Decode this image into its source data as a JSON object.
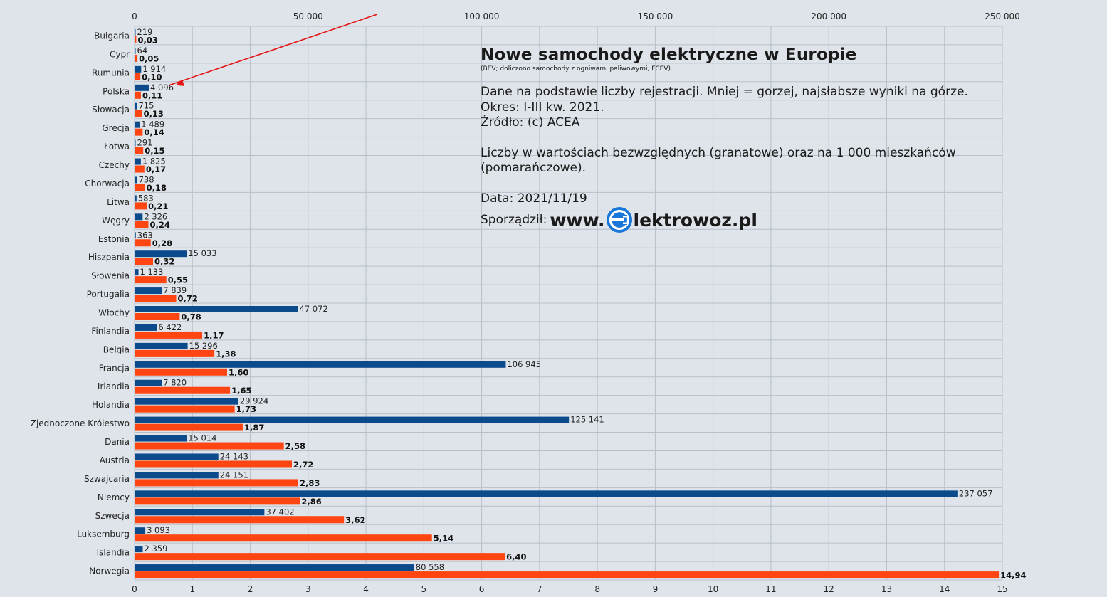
{
  "colors": {
    "background": "#dfe4ea",
    "absolute": "#0b4a8b",
    "per_capita": "#fe4512",
    "grid": "#b8bfc9",
    "arrow": "#e31515",
    "logo_icon": "#1877d8"
  },
  "info": {
    "title": "Nowe samochody elektryczne w Europie",
    "subtitle": "(BEV; doliczono samochody z ogniwami paliwowymi, FCEV)",
    "line1": "Dane na podstawie liczby rejestracji. Mniej = gorzej, najsłabsze wyniki na górze.",
    "line2": "Okres: I-III kw. 2021.",
    "line3": "Źródło: (c) ACEA",
    "line4": "Liczby w wartościach bezwzględnych (granatowe) oraz na 1 000 mieszkańców",
    "line5": "(pomarańczowe).",
    "date": "Data: 2021/11/19",
    "author_label": "Sporządził:",
    "logo_prefix": "www.",
    "logo_name": "lektrowoz.pl",
    "logo_icon": "plug-e-icon"
  },
  "chart_data": {
    "type": "bar",
    "orientation": "horizontal",
    "categories": [
      "Bułgaria",
      "Cypr",
      "Rumunia",
      "Polska",
      "Słowacja",
      "Grecja",
      "Łotwa",
      "Czechy",
      "Chorwacja",
      "Litwa",
      "Węgry",
      "Estonia",
      "Hiszpania",
      "Słowenia",
      "Portugalia",
      "Włochy",
      "Finlandia",
      "Belgia",
      "Francja",
      "Irlandia",
      "Holandia",
      "Zjednoczone Królestwo",
      "Dania",
      "Austria",
      "Szwajcaria",
      "Niemcy",
      "Szwecja",
      "Luksemburg",
      "Islandia",
      "Norwegia"
    ],
    "series": [
      {
        "axis": "top",
        "color": "#0b4a8b",
        "values": [
          219,
          64,
          1914,
          4096,
          715,
          1489,
          291,
          1825,
          738,
          583,
          2326,
          363,
          15033,
          1133,
          7839,
          47072,
          6422,
          15296,
          106945,
          7820,
          29924,
          125141,
          15014,
          24143,
          24151,
          237057,
          37402,
          3093,
          2359,
          80558
        ],
        "labels": [
          "219",
          "64",
          "1 914",
          "4 096",
          "715",
          "1 489",
          "291",
          "1 825",
          "738",
          "583",
          "2 326",
          "363",
          "15 033",
          "1 133",
          "7 839",
          "47 072",
          "6 422",
          "15 296",
          "106 945",
          "7 820",
          "29 924",
          "125 141",
          "15 014",
          "24 143",
          "24 151",
          "237 057",
          "37 402",
          "3 093",
          "2 359",
          "80 558"
        ]
      },
      {
        "axis": "bottom",
        "color": "#fe4512",
        "values": [
          0.03,
          0.05,
          0.1,
          0.11,
          0.13,
          0.14,
          0.15,
          0.17,
          0.18,
          0.21,
          0.24,
          0.28,
          0.32,
          0.55,
          0.72,
          0.78,
          1.17,
          1.38,
          1.6,
          1.65,
          1.73,
          1.87,
          2.58,
          2.72,
          2.83,
          2.86,
          3.62,
          5.14,
          6.4,
          14.94
        ],
        "labels": [
          "0,03",
          "0,05",
          "0,10",
          "0,11",
          "0,13",
          "0,14",
          "0,15",
          "0,17",
          "0,18",
          "0,21",
          "0,24",
          "0,28",
          "0,32",
          "0,55",
          "0,72",
          "0,78",
          "1,17",
          "1,38",
          "1,60",
          "1,65",
          "1,73",
          "1,87",
          "2,58",
          "2,72",
          "2,83",
          "2,86",
          "3,62",
          "5,14",
          "6,40",
          "14,94"
        ]
      }
    ],
    "top_axis": {
      "range": [
        0,
        250000
      ],
      "ticks": [
        "0",
        "50 000",
        "100 000",
        "150 000",
        "200 000",
        "250 000"
      ]
    },
    "bottom_axis": {
      "range": [
        0,
        15
      ],
      "ticks": [
        "0",
        "1",
        "2",
        "3",
        "4",
        "5",
        "6",
        "7",
        "8",
        "9",
        "10",
        "11",
        "12",
        "13",
        "14",
        "15"
      ]
    },
    "grid": true,
    "annotation": {
      "type": "arrow",
      "points_to": "Polska"
    }
  }
}
